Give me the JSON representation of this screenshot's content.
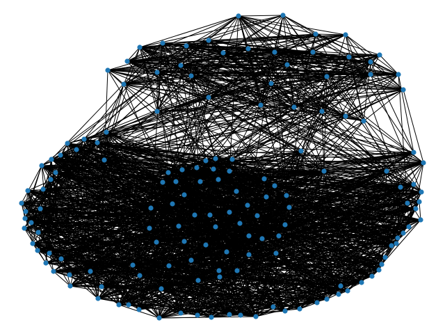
{
  "diagram": {
    "kind": "network graph",
    "node_color": "#1f77b4",
    "edge_color": "#000000",
    "background_color": "#ffffff",
    "node_shape": "circle",
    "clusters": [
      {
        "id": "upper",
        "node_count": 34
      },
      {
        "id": "lower",
        "node_count": 120
      }
    ]
  }
}
